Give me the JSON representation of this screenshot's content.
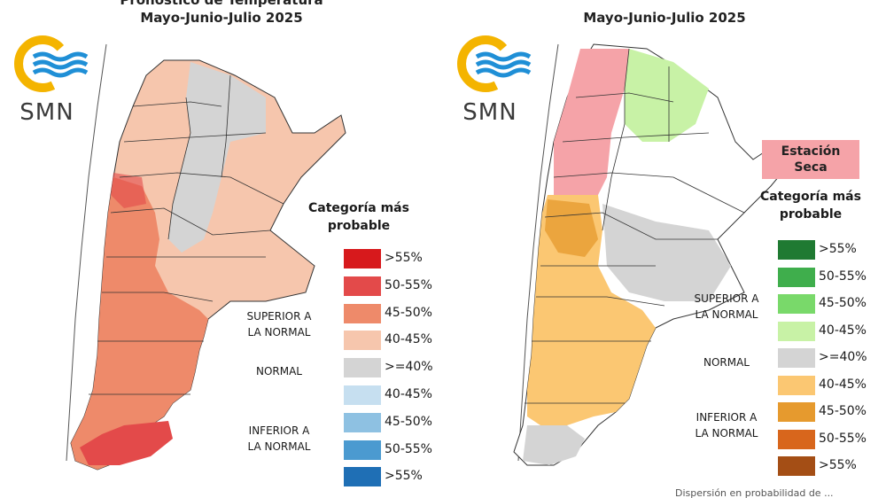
{
  "left_panel": {
    "title_line1": "Pronóstico de Temperatura",
    "title_line2": "Mayo-Junio-Julio 2025",
    "logo_text": "SMN",
    "legend_title_1": "Categoría más",
    "legend_title_2": "probable",
    "categories": {
      "superior_1": "SUPERIOR A",
      "superior_2": "LA NORMAL",
      "normal": "NORMAL",
      "inferior_1": "INFERIOR A",
      "inferior_2": "LA NORMAL"
    },
    "legend": [
      {
        "label": ">55%",
        "color": "#d7191c"
      },
      {
        "label": "50-55%",
        "color": "#e34a4a"
      },
      {
        "label": "45-50%",
        "color": "#ee8a6a"
      },
      {
        "label": "40-45%",
        "color": "#f6c6ad"
      },
      {
        "label": ">=40%",
        "color": "#d4d4d4"
      },
      {
        "label": "40-45%",
        "color": "#c6dff0"
      },
      {
        "label": "45-50%",
        "color": "#8ec1e2"
      },
      {
        "label": "50-55%",
        "color": "#4b9ad0"
      },
      {
        "label": ">55%",
        "color": "#1f6fb5"
      }
    ]
  },
  "right_panel": {
    "title_line2": "Mayo-Junio-Julio 2025",
    "logo_text": "SMN",
    "dry_season_1": "Estación",
    "dry_season_2": "Seca",
    "legend_title_1": "Categoría más",
    "legend_title_2": "probable",
    "categories": {
      "superior_1": "SUPERIOR A",
      "superior_2": "LA NORMAL",
      "normal": "NORMAL",
      "inferior_1": "INFERIOR A",
      "inferior_2": "LA NORMAL"
    },
    "legend": [
      {
        "label": ">55%",
        "color": "#1f7a32"
      },
      {
        "label": "50-55%",
        "color": "#3fae4c"
      },
      {
        "label": "45-50%",
        "color": "#79d96a"
      },
      {
        "label": "40-45%",
        "color": "#c8f2a6"
      },
      {
        "label": ">=40%",
        "color": "#d4d4d4"
      },
      {
        "label": "40-45%",
        "color": "#fbc772"
      },
      {
        "label": "45-50%",
        "color": "#e69a2e"
      },
      {
        "label": "50-55%",
        "color": "#d8661c"
      },
      {
        "label": ">55%",
        "color": "#a44e15"
      }
    ],
    "footnote": "Dispersión en probabilidad de ..."
  },
  "map_colors": {
    "temp_light": "#f6c6ad",
    "temp_mid": "#ee8a6a",
    "temp_dark": "#e34a4a",
    "grey": "#d4d4d4",
    "rain_pink": "#f5a3a8",
    "rain_green": "#c8f2a6",
    "rain_orange": "#fbc772",
    "rain_dark_orange": "#e69a2e"
  }
}
